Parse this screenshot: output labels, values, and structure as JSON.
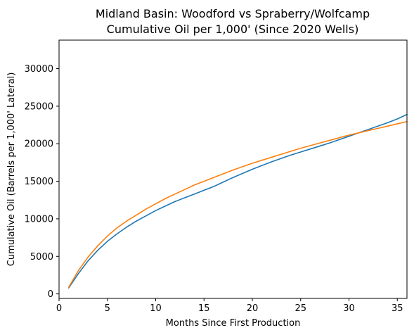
{
  "chart_data": {
    "type": "line",
    "title_line1": "Midland Basin: Woodford vs Spraberry/Wolfcamp",
    "title_line2": "Cumulative Oil per 1,000' (Since 2020 Wells)",
    "xlabel": "Months Since First Production",
    "ylabel": "Cumulative Oil (Barrels per 1,000' Lateral)",
    "xlim": [
      0,
      36
    ],
    "ylim": [
      -600,
      33800
    ],
    "xticks": [
      0,
      5,
      10,
      15,
      20,
      25,
      30,
      35
    ],
    "yticks": [
      0,
      5000,
      10000,
      15000,
      20000,
      25000,
      30000
    ],
    "grid": false,
    "series": [
      {
        "color": "#1f77b4",
        "x": [
          1,
          2,
          3,
          4,
          5,
          6,
          7,
          8,
          9,
          10,
          11,
          12,
          13,
          14,
          15,
          16,
          17,
          18,
          19,
          20,
          21,
          22,
          23,
          24,
          25,
          26,
          27,
          28,
          29,
          30,
          31,
          32,
          33,
          34,
          35,
          36
        ],
        "values": [
          800,
          2700,
          4400,
          5800,
          7000,
          8000,
          8900,
          9700,
          10400,
          11100,
          11700,
          12300,
          12800,
          13300,
          13800,
          14300,
          14900,
          15500,
          16050,
          16600,
          17100,
          17600,
          18050,
          18500,
          18900,
          19300,
          19700,
          20100,
          20550,
          21000,
          21450,
          21900,
          22350,
          22800,
          23300,
          23900
        ]
      },
      {
        "color": "#ff7f0e",
        "x": [
          1,
          2,
          3,
          4,
          5,
          6,
          7,
          8,
          9,
          10,
          11,
          12,
          13,
          14,
          15,
          16,
          17,
          18,
          19,
          20,
          21,
          22,
          23,
          24,
          25,
          26,
          27,
          28,
          29,
          30,
          31,
          32,
          33,
          34,
          35,
          36
        ],
        "values": [
          900,
          3100,
          4900,
          6400,
          7700,
          8800,
          9700,
          10500,
          11300,
          12000,
          12700,
          13300,
          13900,
          14500,
          15000,
          15500,
          16000,
          16500,
          16950,
          17400,
          17800,
          18200,
          18600,
          19000,
          19400,
          19750,
          20100,
          20450,
          20800,
          21150,
          21450,
          21750,
          22050,
          22350,
          22650,
          22950
        ]
      }
    ]
  }
}
